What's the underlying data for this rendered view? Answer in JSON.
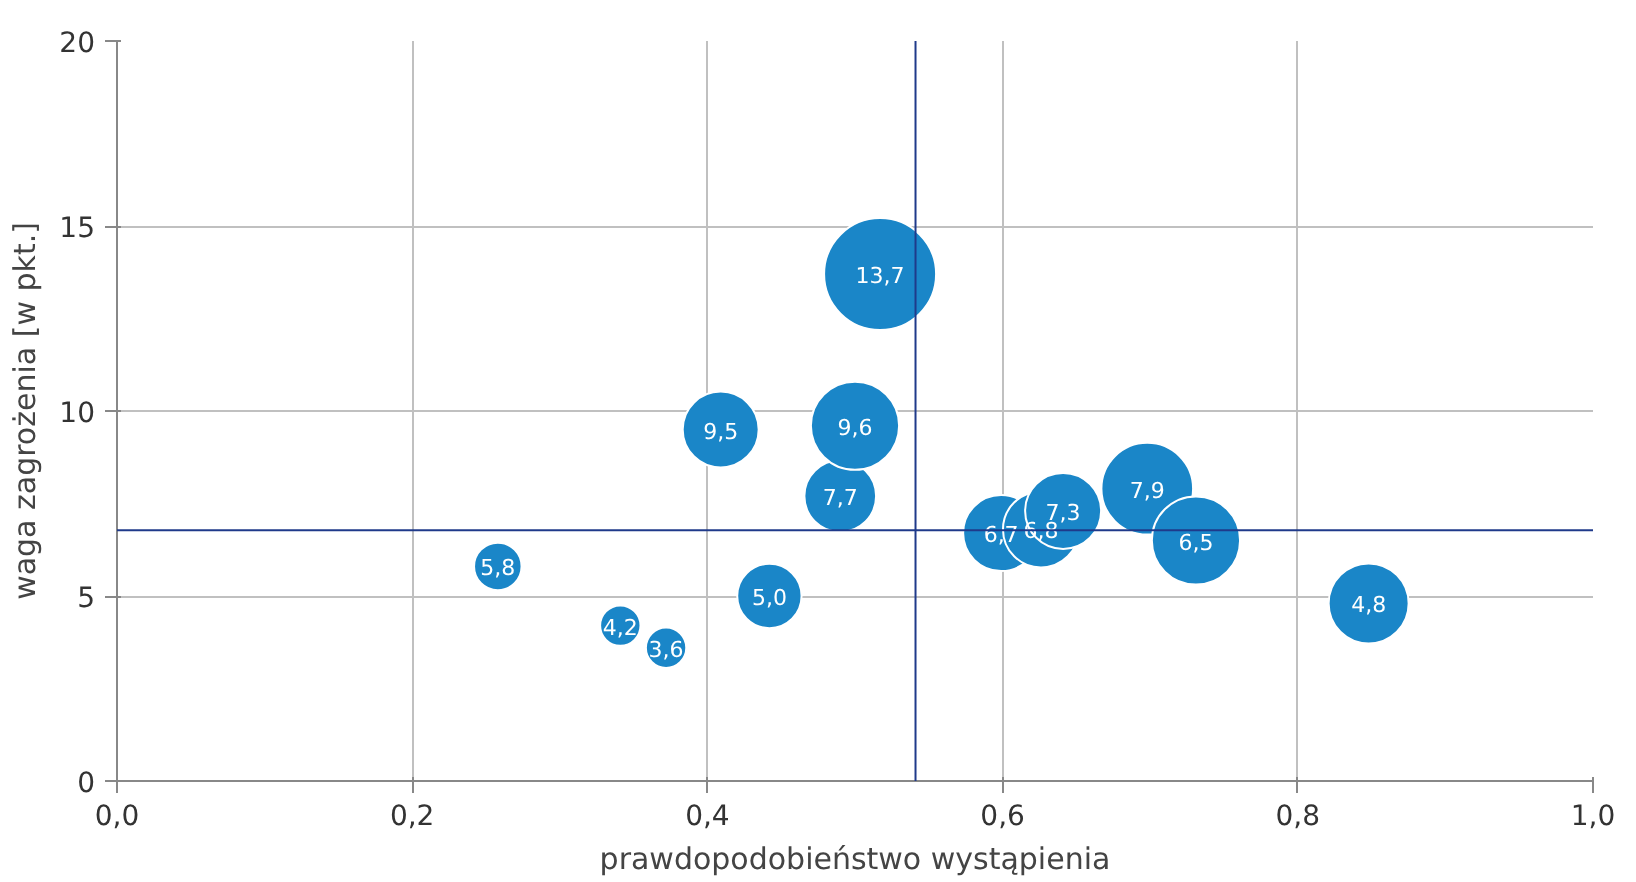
{
  "chart_data": {
    "type": "bubble",
    "xlabel": "prawdopodobieństwo wystąpienia",
    "ylabel": "waga zagrożenia [w pkt.]",
    "x": [
      0.258,
      0.341,
      0.372,
      0.442,
      0.409,
      0.49,
      0.5,
      0.517,
      0.599,
      0.626,
      0.641,
      0.698,
      0.731,
      0.848
    ],
    "values": [
      5.8,
      4.2,
      3.6,
      5.0,
      9.5,
      7.7,
      9.6,
      13.7,
      6.7,
      6.8,
      7.3,
      7.9,
      6.5,
      4.8
    ],
    "value_labels": [
      "5,8",
      "4,2",
      "3,6",
      "5,0",
      "9,5",
      "7,7",
      "9,6",
      "13,7",
      "6,7",
      "6,8",
      "7,3",
      "7,9",
      "6,5",
      "4,8"
    ],
    "sizes": [
      0.18,
      0.13,
      0.13,
      0.33,
      0.46,
      0.41,
      0.62,
      1,
      0.46,
      0.46,
      0.46,
      0.67,
      0.62,
      0.51
    ],
    "color": "#1a86c8",
    "xlim": [
      0,
      1
    ],
    "ylim": [
      0,
      20
    ],
    "xticks": [
      {
        "value": 0,
        "label": "0,0"
      },
      {
        "value": 0.2,
        "label": "0,2"
      },
      {
        "value": 0.4,
        "label": "0,4"
      },
      {
        "value": 0.6,
        "label": "0,6"
      },
      {
        "value": 0.8,
        "label": "0,8"
      },
      {
        "value": 1,
        "label": "1,0"
      }
    ],
    "yticks": [
      0,
      5,
      10,
      15,
      20
    ],
    "ref_lines": [
      {
        "axis": "x",
        "value": 0.541,
        "color": "#1f3a8a"
      },
      {
        "axis": "y",
        "value": 6.78,
        "color": "#1f3a8a"
      }
    ],
    "grid": true
  }
}
